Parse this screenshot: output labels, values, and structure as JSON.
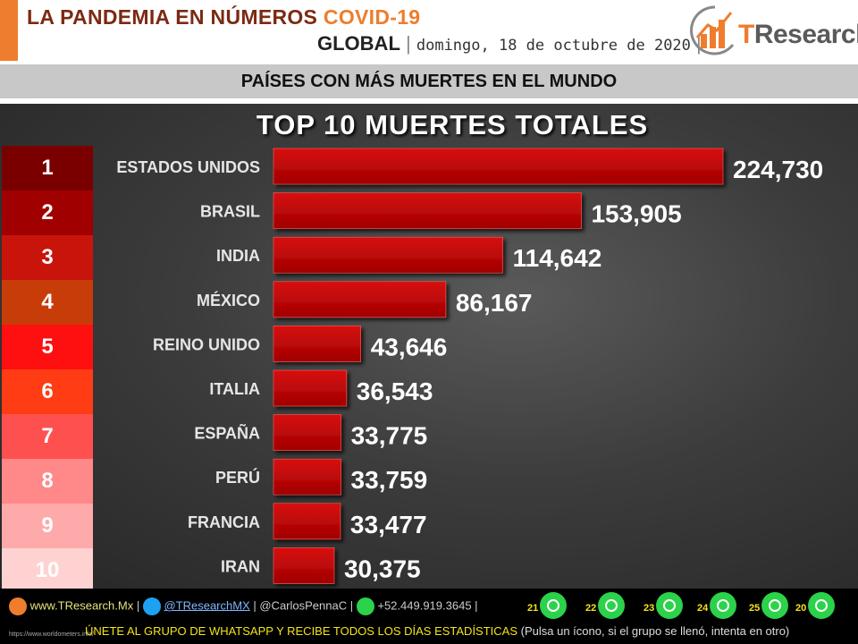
{
  "header": {
    "title_main": "LA PANDEMIA EN NÚMEROS",
    "title_accent": "COVID-19",
    "scope": "GLOBAL",
    "date": "domingo, 18 de octubre de 2020",
    "logo_t": "T",
    "logo_rest": "Research"
  },
  "subtitle": "PAÍSES CON MÁS MUERTES EN EL MUNDO",
  "chart_data": {
    "type": "bar",
    "orientation": "horizontal",
    "title": "TOP 10 MUERTES TOTALES",
    "categories": [
      "ESTADOS UNIDOS",
      "BRASIL",
      "INDIA",
      "MÉXICO",
      "REINO UNIDO",
      "ITALIA",
      "ESPAÑA",
      "PERÚ",
      "FRANCIA",
      "IRAN"
    ],
    "values": [
      224730,
      153905,
      114642,
      86167,
      43646,
      36543,
      33775,
      33759,
      33477,
      30375
    ],
    "value_labels": [
      "224,730",
      "153,905",
      "114,642",
      "86,167",
      "43,646",
      "36,543",
      "33,775",
      "33,759",
      "33,477",
      "30,375"
    ],
    "ranks": [
      "1",
      "2",
      "3",
      "4",
      "5",
      "6",
      "7",
      "8",
      "9",
      "10"
    ],
    "rank_colors": [
      "#7a0000",
      "#a00000",
      "#c8140a",
      "#c83c0a",
      "#ff1010",
      "#ff3c14",
      "#ff5050",
      "#ff8888",
      "#ffaaaa",
      "#ffd2d2"
    ],
    "bar_color": "#c00000",
    "xlim": [
      0,
      224730
    ]
  },
  "footer": {
    "website": "www.TResearch.Mx",
    "twitter": "@TResearchMX",
    "twitter2": "@CarlosPennaC",
    "phone": "+52.449.919.3645",
    "whatsapp_groups": [
      "21",
      "22",
      "23",
      "24",
      "25",
      "20"
    ],
    "cta": "ÚNETE AL GRUPO DE WHATSAPP Y RECIBE TODOS LOS DÍAS ESTADÍSTICAS",
    "cta_note": "(Pulsa un ícono, si el grupo se llenó, intenta en otro)",
    "source_url": "https://www.worldometers.info/"
  }
}
